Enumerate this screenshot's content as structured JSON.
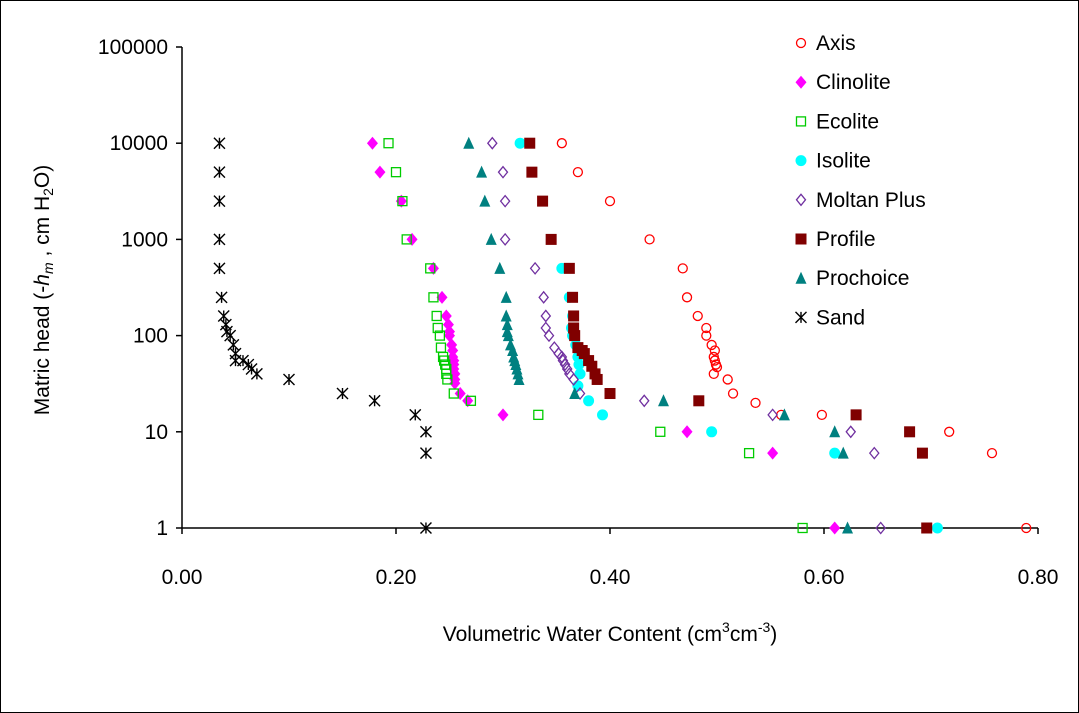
{
  "chart_data": {
    "type": "scatter",
    "title": "",
    "xlabel": {
      "text": "Volumetric Water Content (cm",
      "sup1": "3",
      "mid": "cm",
      "sup2": "-3",
      "end": ")"
    },
    "ylabel": {
      "pre": "Matric head (-",
      "italic": "h",
      "sub_italic": "m",
      "mid": " , cm H",
      "sub": "2",
      "end": "O)"
    },
    "xlim": [
      0,
      0.8
    ],
    "ylim": [
      1,
      100000
    ],
    "y_scale": "log",
    "grid": false,
    "legend_position": "top-right",
    "x_ticks": [
      {
        "value": 0.0,
        "label": "0.00"
      },
      {
        "value": 0.2,
        "label": "0.20"
      },
      {
        "value": 0.4,
        "label": "0.40"
      },
      {
        "value": 0.6,
        "label": "0.60"
      },
      {
        "value": 0.8,
        "label": "0.80"
      }
    ],
    "y_ticks": [
      {
        "value": 1,
        "label": "1"
      },
      {
        "value": 10,
        "label": "10"
      },
      {
        "value": 100,
        "label": "100"
      },
      {
        "value": 1000,
        "label": "1000"
      },
      {
        "value": 10000,
        "label": "10000"
      },
      {
        "value": 100000,
        "label": "100000"
      }
    ],
    "series": [
      {
        "name": "Axis",
        "marker": "circle-open",
        "color": "#ff0000",
        "points": [
          [
            0.355,
            10000
          ],
          [
            0.37,
            5000
          ],
          [
            0.4,
            2500
          ],
          [
            0.437,
            1000
          ],
          [
            0.468,
            500
          ],
          [
            0.472,
            250
          ],
          [
            0.482,
            160
          ],
          [
            0.49,
            120
          ],
          [
            0.49,
            100
          ],
          [
            0.495,
            80
          ],
          [
            0.498,
            70
          ],
          [
            0.497,
            60
          ],
          [
            0.498,
            55
          ],
          [
            0.499,
            50
          ],
          [
            0.5,
            47
          ],
          [
            0.497,
            40
          ],
          [
            0.51,
            35
          ],
          [
            0.515,
            25
          ],
          [
            0.536,
            20
          ],
          [
            0.56,
            15
          ],
          [
            0.598,
            15
          ],
          [
            0.717,
            10
          ],
          [
            0.757,
            6
          ],
          [
            0.789,
            1
          ]
        ]
      },
      {
        "name": "Clinolite",
        "marker": "diamond-filled",
        "color": "#ff00ff",
        "points": [
          [
            0.178,
            10000
          ],
          [
            0.185,
            5000
          ],
          [
            0.205,
            2500
          ],
          [
            0.215,
            1000
          ],
          [
            0.235,
            500
          ],
          [
            0.243,
            250
          ],
          [
            0.247,
            160
          ],
          [
            0.249,
            130
          ],
          [
            0.25,
            110
          ],
          [
            0.25,
            100
          ],
          [
            0.252,
            80
          ],
          [
            0.253,
            70
          ],
          [
            0.253,
            60
          ],
          [
            0.254,
            55
          ],
          [
            0.254,
            50
          ],
          [
            0.254,
            45
          ],
          [
            0.255,
            40
          ],
          [
            0.255,
            35
          ],
          [
            0.255,
            32
          ],
          [
            0.26,
            25
          ],
          [
            0.267,
            21
          ],
          [
            0.3,
            15
          ],
          [
            0.472,
            10
          ],
          [
            0.552,
            6
          ],
          [
            0.61,
            1
          ]
        ]
      },
      {
        "name": "Ecolite",
        "marker": "square-open",
        "color": "#00cc00",
        "points": [
          [
            0.193,
            10000
          ],
          [
            0.2,
            5000
          ],
          [
            0.206,
            2500
          ],
          [
            0.21,
            1000
          ],
          [
            0.232,
            500
          ],
          [
            0.235,
            250
          ],
          [
            0.238,
            160
          ],
          [
            0.239,
            120
          ],
          [
            0.241,
            100
          ],
          [
            0.242,
            75
          ],
          [
            0.244,
            60
          ],
          [
            0.245,
            55
          ],
          [
            0.246,
            50
          ],
          [
            0.247,
            45
          ],
          [
            0.247,
            40
          ],
          [
            0.248,
            35
          ],
          [
            0.254,
            25
          ],
          [
            0.27,
            21
          ],
          [
            0.333,
            15
          ],
          [
            0.447,
            10
          ],
          [
            0.53,
            6
          ],
          [
            0.58,
            1
          ]
        ]
      },
      {
        "name": "Isolite",
        "marker": "circle-filled",
        "color": "#00ffff",
        "points": [
          [
            0.316,
            10000
          ],
          [
            0.355,
            500
          ],
          [
            0.362,
            250
          ],
          [
            0.365,
            160
          ],
          [
            0.364,
            120
          ],
          [
            0.365,
            100
          ],
          [
            0.368,
            80
          ],
          [
            0.37,
            60
          ],
          [
            0.371,
            50
          ],
          [
            0.372,
            40
          ],
          [
            0.37,
            30
          ],
          [
            0.38,
            21
          ],
          [
            0.393,
            15
          ],
          [
            0.495,
            10
          ],
          [
            0.61,
            6
          ],
          [
            0.706,
            1
          ]
        ]
      },
      {
        "name": "Moltan Plus",
        "marker": "diamond-open",
        "color": "#7030a0",
        "points": [
          [
            0.29,
            10000
          ],
          [
            0.3,
            5000
          ],
          [
            0.302,
            2500
          ],
          [
            0.302,
            1000
          ],
          [
            0.33,
            500
          ],
          [
            0.338,
            250
          ],
          [
            0.34,
            160
          ],
          [
            0.34,
            120
          ],
          [
            0.343,
            100
          ],
          [
            0.348,
            75
          ],
          [
            0.352,
            65
          ],
          [
            0.355,
            60
          ],
          [
            0.356,
            55
          ],
          [
            0.358,
            50
          ],
          [
            0.36,
            45
          ],
          [
            0.362,
            40
          ],
          [
            0.366,
            35
          ],
          [
            0.372,
            25
          ],
          [
            0.432,
            21
          ],
          [
            0.552,
            15
          ],
          [
            0.625,
            10
          ],
          [
            0.647,
            6
          ],
          [
            0.653,
            1
          ]
        ]
      },
      {
        "name": "Profile",
        "marker": "square-filled",
        "color": "#800000",
        "points": [
          [
            0.325,
            10000
          ],
          [
            0.327,
            5000
          ],
          [
            0.337,
            2500
          ],
          [
            0.345,
            1000
          ],
          [
            0.362,
            500
          ],
          [
            0.365,
            250
          ],
          [
            0.366,
            160
          ],
          [
            0.366,
            120
          ],
          [
            0.367,
            100
          ],
          [
            0.37,
            75
          ],
          [
            0.374,
            70
          ],
          [
            0.376,
            65
          ],
          [
            0.38,
            55
          ],
          [
            0.383,
            48
          ],
          [
            0.386,
            40
          ],
          [
            0.388,
            35
          ],
          [
            0.4,
            25
          ],
          [
            0.483,
            21
          ],
          [
            0.63,
            15
          ],
          [
            0.68,
            10
          ],
          [
            0.692,
            6
          ],
          [
            0.696,
            1
          ]
        ]
      },
      {
        "name": "Prochoice",
        "marker": "triangle-filled",
        "color": "#008080",
        "points": [
          [
            0.268,
            10000
          ],
          [
            0.28,
            5000
          ],
          [
            0.283,
            2500
          ],
          [
            0.289,
            1000
          ],
          [
            0.297,
            500
          ],
          [
            0.303,
            250
          ],
          [
            0.303,
            160
          ],
          [
            0.304,
            130
          ],
          [
            0.304,
            110
          ],
          [
            0.305,
            100
          ],
          [
            0.307,
            80
          ],
          [
            0.309,
            70
          ],
          [
            0.31,
            60
          ],
          [
            0.311,
            55
          ],
          [
            0.312,
            50
          ],
          [
            0.313,
            45
          ],
          [
            0.314,
            40
          ],
          [
            0.315,
            35
          ],
          [
            0.367,
            25
          ],
          [
            0.45,
            21
          ],
          [
            0.563,
            15
          ],
          [
            0.61,
            10
          ],
          [
            0.618,
            6
          ],
          [
            0.622,
            1
          ]
        ]
      },
      {
        "name": "Sand",
        "marker": "asterisk",
        "color": "#000000",
        "points": [
          [
            0.035,
            10000
          ],
          [
            0.035,
            5000
          ],
          [
            0.035,
            2500
          ],
          [
            0.035,
            1000
          ],
          [
            0.035,
            500
          ],
          [
            0.037,
            250
          ],
          [
            0.039,
            160
          ],
          [
            0.041,
            130
          ],
          [
            0.042,
            110
          ],
          [
            0.045,
            100
          ],
          [
            0.048,
            80
          ],
          [
            0.05,
            65
          ],
          [
            0.05,
            55
          ],
          [
            0.057,
            55
          ],
          [
            0.062,
            50
          ],
          [
            0.065,
            45
          ],
          [
            0.07,
            40
          ],
          [
            0.1,
            35
          ],
          [
            0.15,
            25
          ],
          [
            0.18,
            21
          ],
          [
            0.218,
            15
          ],
          [
            0.228,
            10
          ],
          [
            0.228,
            6
          ],
          [
            0.228,
            1
          ]
        ]
      }
    ]
  }
}
